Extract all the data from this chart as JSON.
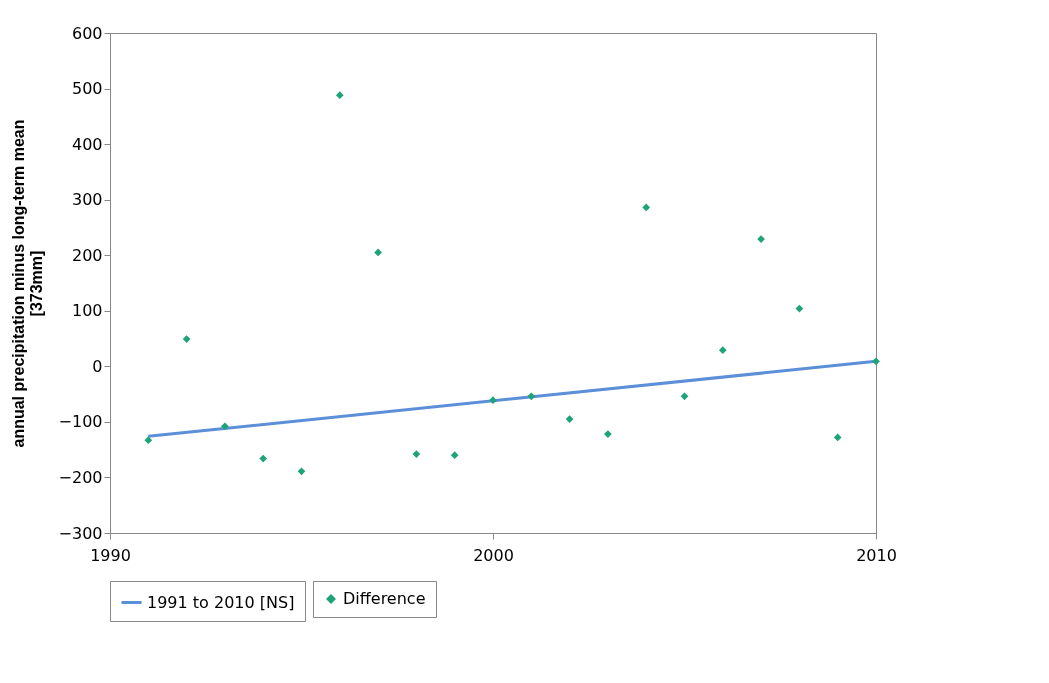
{
  "chart_data": {
    "type": "scatter",
    "ylabel": "annual precipitation minus long-term mean [373mm]",
    "xlim": [
      1990,
      2010
    ],
    "xticks": [
      1990,
      2000,
      2010
    ],
    "ylim": [
      -300,
      600
    ],
    "yticks": [
      -300,
      -200,
      -100,
      0,
      100,
      200,
      300,
      400,
      500,
      600
    ],
    "grid": false,
    "legend": "bottom",
    "marker": "diamond",
    "series": [
      {
        "name": "Difference",
        "color": "#1fa37a",
        "x": [
          1991,
          1992,
          1993,
          1994,
          1995,
          1996,
          1997,
          1998,
          1999,
          2000,
          2001,
          2002,
          2003,
          2004,
          2005,
          2006,
          2007,
          2008,
          2009,
          2010
        ],
        "values": [
          -133,
          49,
          -108,
          -166,
          -189,
          488,
          205,
          -158,
          -160,
          -61,
          -54,
          -95,
          -122,
          286,
          -54,
          29,
          229,
          104,
          -128,
          9
        ]
      },
      {
        "name": "1991 to 2010 [NS]",
        "type": "line",
        "color": "#5b8fd8",
        "line_style": "solid",
        "marker": "none",
        "x": [
          1991,
          2010
        ],
        "values": [
          -126,
          9
        ]
      }
    ]
  }
}
